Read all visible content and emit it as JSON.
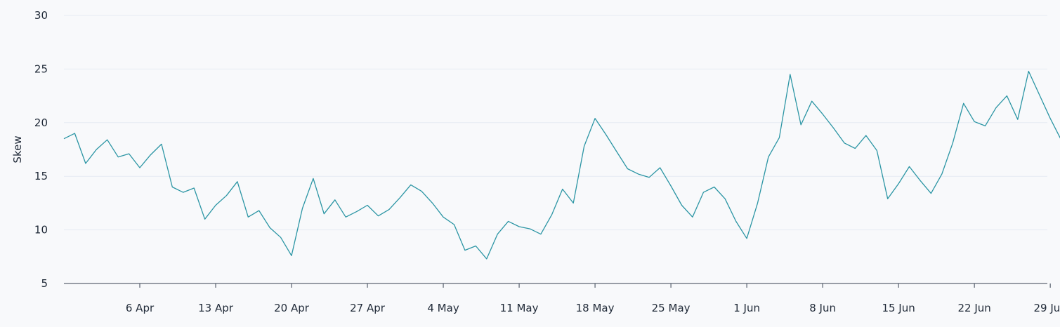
{
  "chart_data": {
    "type": "line",
    "ylabel": "Skew",
    "ylim": [
      5,
      30
    ],
    "y_ticks": [
      5,
      10,
      15,
      20,
      25,
      30
    ],
    "x_start": "2025-03-30",
    "x_end": "2025-06-30",
    "x_ticks": [
      {
        "date": "2025-04-06",
        "label": "6 Apr"
      },
      {
        "date": "2025-04-13",
        "label": "13 Apr"
      },
      {
        "date": "2025-04-20",
        "label": "20 Apr"
      },
      {
        "date": "2025-04-27",
        "label": "27 Apr"
      },
      {
        "date": "2025-05-04",
        "label": "4 May"
      },
      {
        "date": "2025-05-11",
        "label": "11 May"
      },
      {
        "date": "2025-05-18",
        "label": "18 May"
      },
      {
        "date": "2025-05-25",
        "label": "25 May"
      },
      {
        "date": "2025-06-01",
        "label": "1 Jun"
      },
      {
        "date": "2025-06-08",
        "label": "8 Jun"
      },
      {
        "date": "2025-06-15",
        "label": "15 Jun"
      },
      {
        "date": "2025-06-22",
        "label": "22 Jun"
      },
      {
        "date": "2025-06-29",
        "label": "29 Jun"
      }
    ],
    "grid": true,
    "line_color": "#2b95a4",
    "series": [
      {
        "x": [
          "2025-03-30",
          "2025-03-31",
          "2025-04-01",
          "2025-04-02",
          "2025-04-03",
          "2025-04-04",
          "2025-04-05",
          "2025-04-06",
          "2025-04-07",
          "2025-04-08",
          "2025-04-09",
          "2025-04-10",
          "2025-04-11",
          "2025-04-12",
          "2025-04-13",
          "2025-04-14",
          "2025-04-15",
          "2025-04-16",
          "2025-04-17",
          "2025-04-18",
          "2025-04-19",
          "2025-04-20",
          "2025-04-21",
          "2025-04-22",
          "2025-04-23",
          "2025-04-24",
          "2025-04-25",
          "2025-04-26",
          "2025-04-27",
          "2025-04-28",
          "2025-04-29",
          "2025-04-30",
          "2025-05-01",
          "2025-05-02",
          "2025-05-03",
          "2025-05-04",
          "2025-05-05",
          "2025-05-06",
          "2025-05-07",
          "2025-05-08",
          "2025-05-09",
          "2025-05-10",
          "2025-05-11",
          "2025-05-12",
          "2025-05-13",
          "2025-05-14",
          "2025-05-15",
          "2025-05-16",
          "2025-05-17",
          "2025-05-18",
          "2025-05-19",
          "2025-05-20",
          "2025-05-21",
          "2025-05-22",
          "2025-05-23",
          "2025-05-24",
          "2025-05-25",
          "2025-05-26",
          "2025-05-27",
          "2025-05-28",
          "2025-05-29",
          "2025-05-30",
          "2025-05-31",
          "2025-06-01",
          "2025-06-02",
          "2025-06-03",
          "2025-06-04",
          "2025-06-05",
          "2025-06-06",
          "2025-06-07",
          "2025-06-08",
          "2025-06-09",
          "2025-06-10",
          "2025-06-11",
          "2025-06-12",
          "2025-06-13",
          "2025-06-14",
          "2025-06-15",
          "2025-06-16",
          "2025-06-17",
          "2025-06-18",
          "2025-06-19",
          "2025-06-20",
          "2025-06-21",
          "2025-06-22",
          "2025-06-23",
          "2025-06-24",
          "2025-06-25",
          "2025-06-26",
          "2025-06-27",
          "2025-06-28",
          "2025-06-29",
          "2025-06-30"
        ],
        "values": [
          18.5,
          19.0,
          16.2,
          17.5,
          18.4,
          16.8,
          17.1,
          15.8,
          17.0,
          18.0,
          14.0,
          13.5,
          13.9,
          11.0,
          12.3,
          13.2,
          14.5,
          11.2,
          11.8,
          10.2,
          9.3,
          7.6,
          12.0,
          14.8,
          11.5,
          12.8,
          11.2,
          11.7,
          12.3,
          11.3,
          11.9,
          13.0,
          14.2,
          13.6,
          12.5,
          11.2,
          10.5,
          8.1,
          8.5,
          7.3,
          9.6,
          10.8,
          10.3,
          10.1,
          9.6,
          11.4,
          13.8,
          12.5,
          17.8,
          20.4,
          18.9,
          17.3,
          15.7,
          15.2,
          14.9,
          15.8,
          14.1,
          12.3,
          11.2,
          13.5,
          14.0,
          12.9,
          10.8,
          9.2,
          12.5,
          16.8,
          18.6,
          24.5,
          19.8,
          22.0,
          20.8,
          19.5,
          18.1,
          17.6,
          18.8,
          17.4,
          12.9,
          14.3,
          15.9,
          14.6,
          13.4,
          15.2,
          18.1,
          21.8,
          20.1,
          19.7,
          21.4,
          22.5,
          20.3,
          24.8,
          22.6,
          20.4,
          18.4
        ]
      }
    ]
  }
}
